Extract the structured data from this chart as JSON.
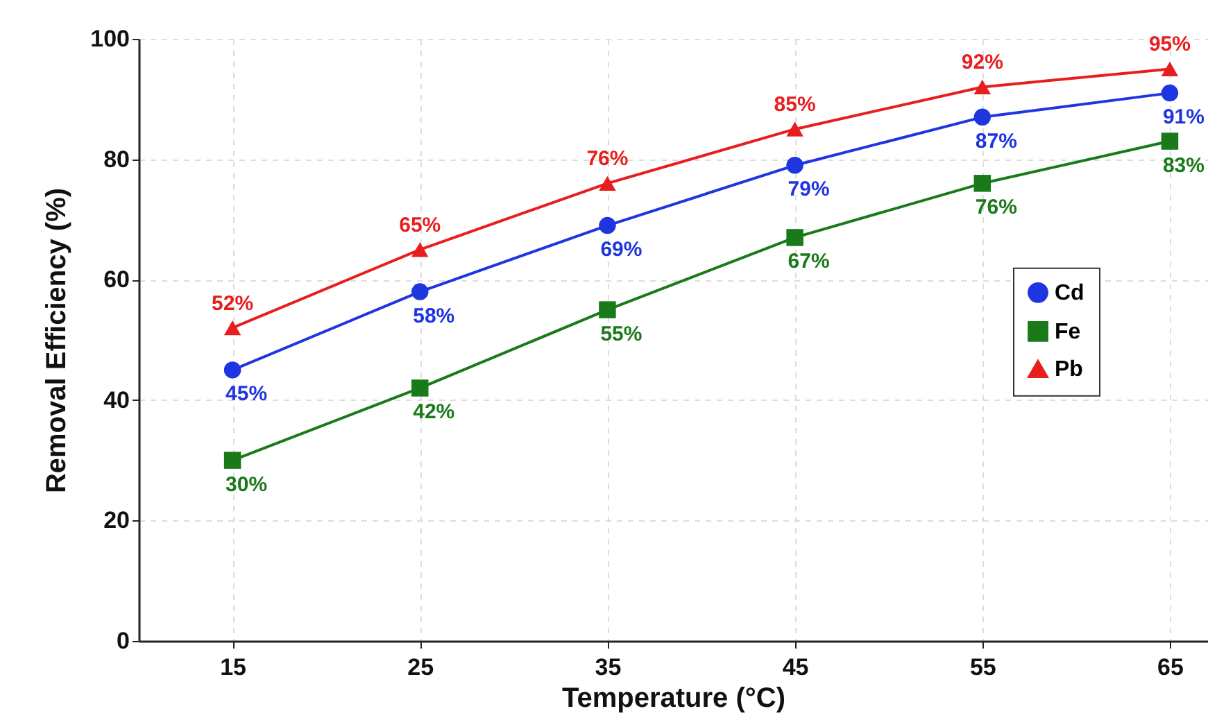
{
  "chart_data": {
    "type": "line",
    "xlabel": "Temperature (°C)",
    "ylabel": "Removal Efficiency (%)",
    "x": [
      15,
      25,
      35,
      45,
      55,
      65
    ],
    "series": [
      {
        "name": "Cd",
        "color": "#1f35e0",
        "marker": "circle",
        "values": [
          45,
          58,
          69,
          79,
          87,
          91
        ],
        "value_labels": [
          "45%",
          "58%",
          "69%",
          "79%",
          "87%",
          "91%"
        ]
      },
      {
        "name": "Fe",
        "color": "#1a7a1a",
        "marker": "square",
        "values": [
          30,
          42,
          55,
          67,
          76,
          83
        ],
        "value_labels": [
          "30%",
          "42%",
          "55%",
          "67%",
          "76%",
          "83%"
        ]
      },
      {
        "name": "Pb",
        "color": "#e81e1e",
        "marker": "triangle",
        "values": [
          52,
          65,
          76,
          85,
          92,
          95
        ],
        "value_labels": [
          "52%",
          "65%",
          "76%",
          "85%",
          "92%",
          "95%"
        ]
      }
    ],
    "xlim": [
      10,
      67
    ],
    "xticks": [
      15,
      25,
      35,
      45,
      55,
      65
    ],
    "ylim": [
      0,
      100
    ],
    "yticks": [
      0,
      20,
      40,
      60,
      80,
      100
    ],
    "grid": true,
    "legend": "right",
    "line_style": "solid"
  }
}
